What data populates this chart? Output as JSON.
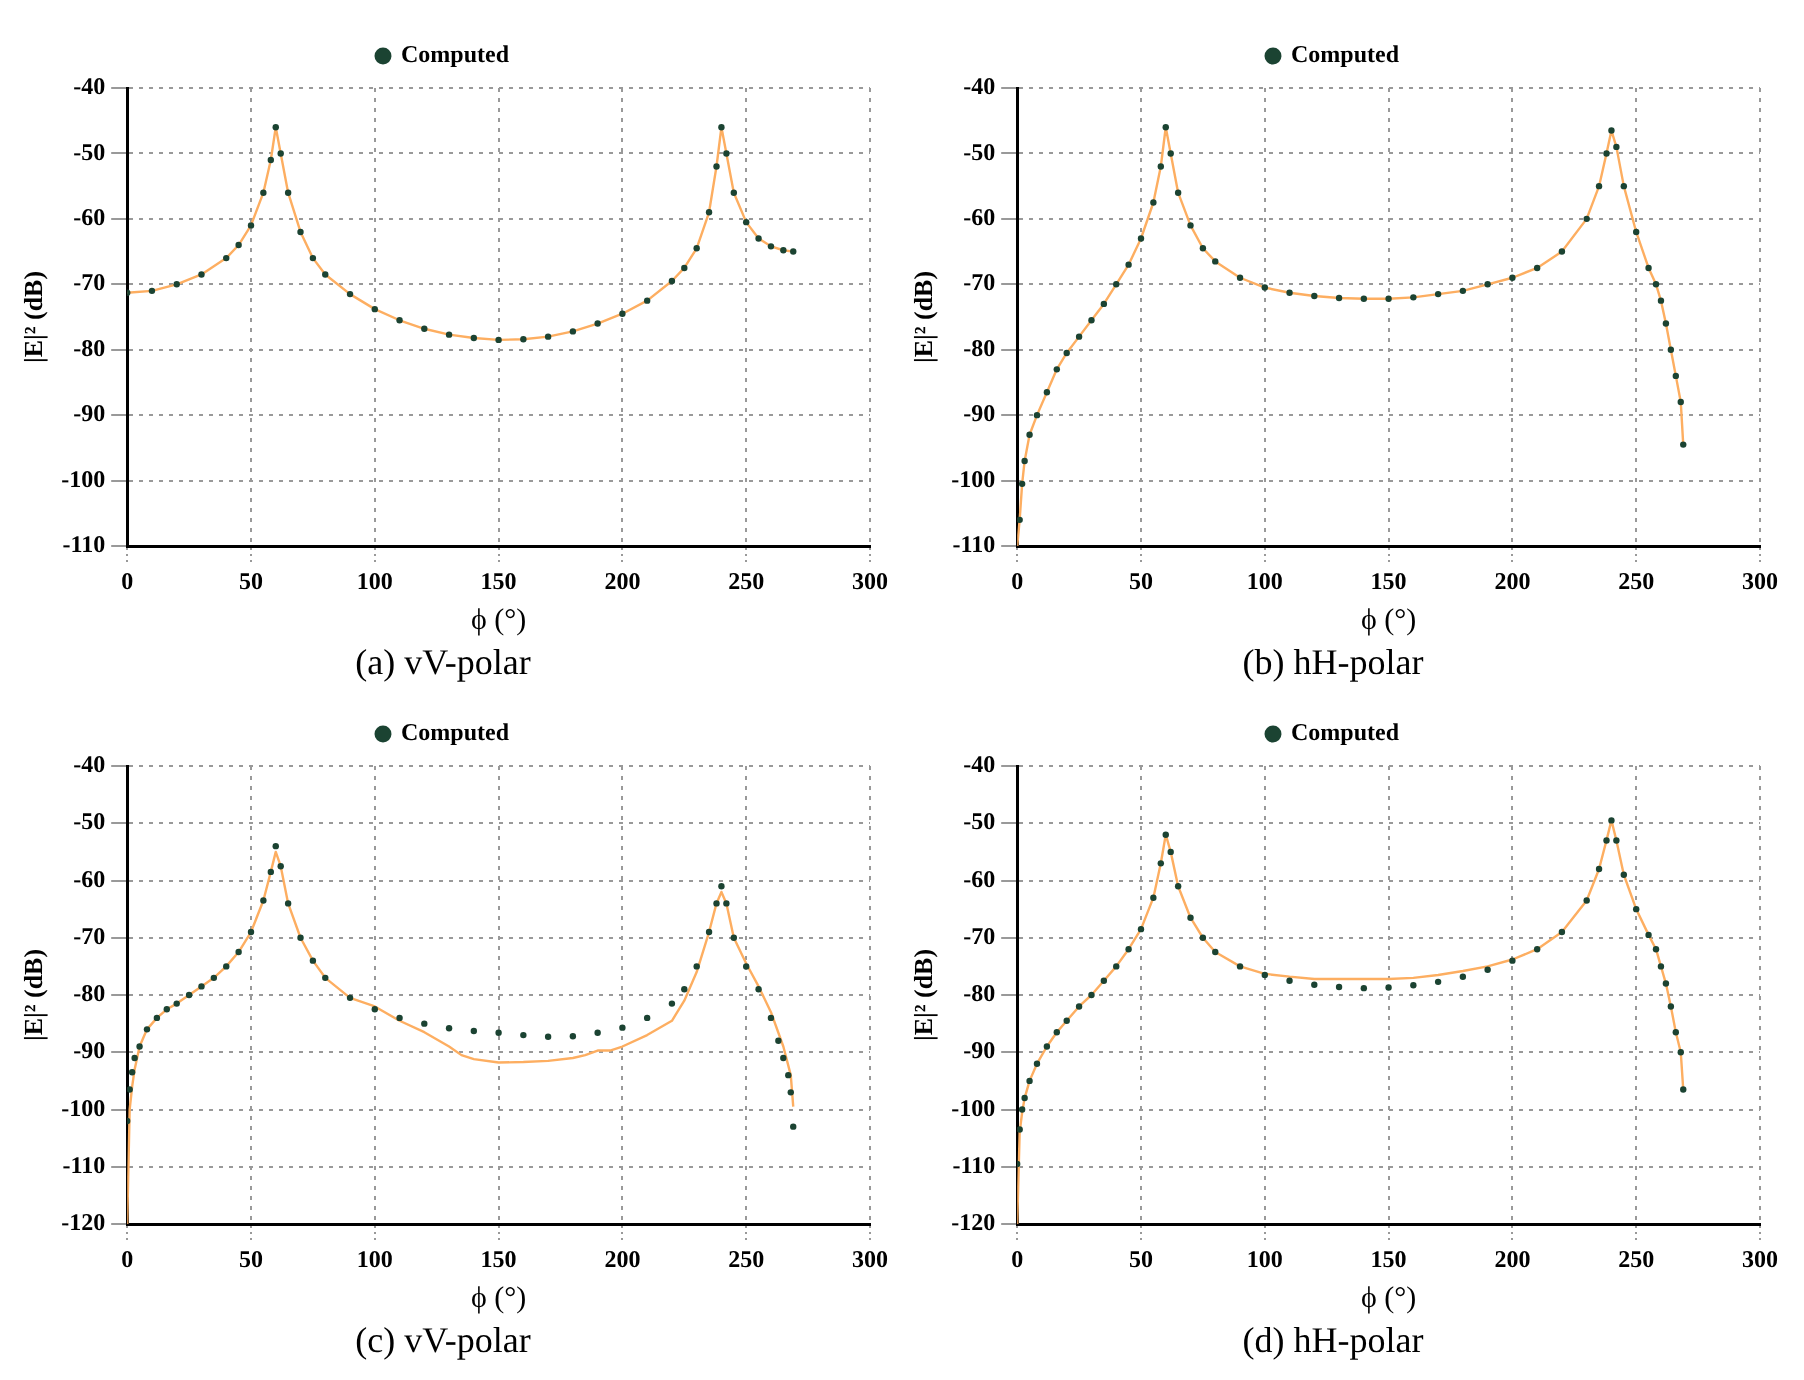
{
  "chart_data": [
    {
      "type": "line",
      "title": "(a) vV-polar",
      "xlabel": "ϕ (°)",
      "ylabel": "|E|² (dB)",
      "xlim": [
        0,
        300
      ],
      "xticks": [
        0,
        50,
        100,
        150,
        200,
        250,
        300
      ],
      "ylim": [
        -110,
        -40
      ],
      "yticks": [
        -110,
        -100,
        -90,
        -80,
        -70,
        -60,
        -50,
        -40
      ],
      "grid": true,
      "legend": "top",
      "series": [
        {
          "type": "line",
          "color": "#fdae61",
          "marker": "none",
          "line_style": "solid",
          "x": [
            0,
            10,
            20,
            30,
            40,
            45,
            50,
            55,
            58,
            60,
            62,
            65,
            70,
            75,
            80,
            90,
            100,
            110,
            120,
            130,
            140,
            150,
            160,
            170,
            180,
            190,
            200,
            210,
            220,
            225,
            230,
            235,
            238,
            240,
            242,
            245,
            250,
            255,
            260,
            265,
            269
          ],
          "values": [
            -71.3,
            -71,
            -70,
            -68.5,
            -66,
            -64,
            -61,
            -56,
            -51,
            -46,
            -50,
            -56,
            -62,
            -66,
            -68.5,
            -71.5,
            -73.8,
            -75.5,
            -76.8,
            -77.7,
            -78.2,
            -78.5,
            -78.4,
            -78,
            -77.2,
            -76,
            -74.5,
            -72.5,
            -69.5,
            -67.5,
            -64.5,
            -59,
            -52,
            -46,
            -50,
            -56,
            -60.5,
            -63,
            -64.2,
            -64.8,
            -65
          ]
        },
        {
          "type": "scatter",
          "name": "Computed",
          "color": "#1b4332",
          "marker": "circle",
          "x": [
            0,
            10,
            20,
            30,
            40,
            45,
            50,
            55,
            58,
            60,
            62,
            65,
            70,
            75,
            80,
            90,
            100,
            110,
            120,
            130,
            140,
            150,
            160,
            170,
            180,
            190,
            200,
            210,
            220,
            225,
            230,
            235,
            238,
            240,
            242,
            245,
            250,
            255,
            260,
            265,
            269
          ],
          "values": [
            -71.3,
            -71,
            -70,
            -68.5,
            -66,
            -64,
            -61,
            -56,
            -51,
            -46,
            -50,
            -56,
            -62,
            -66,
            -68.5,
            -71.5,
            -73.8,
            -75.5,
            -76.8,
            -77.7,
            -78.2,
            -78.5,
            -78.4,
            -78,
            -77.2,
            -76,
            -74.5,
            -72.5,
            -69.5,
            -67.5,
            -64.5,
            -59,
            -52,
            -46,
            -50,
            -56,
            -60.5,
            -63,
            -64.2,
            -64.8,
            -65
          ]
        }
      ]
    },
    {
      "type": "line",
      "title": "(b) hH-polar",
      "xlabel": "ϕ (°)",
      "ylabel": "|E|² (dB)",
      "xlim": [
        0,
        300
      ],
      "xticks": [
        0,
        50,
        100,
        150,
        200,
        250,
        300
      ],
      "ylim": [
        -110,
        -40
      ],
      "yticks": [
        -110,
        -100,
        -90,
        -80,
        -70,
        -60,
        -50,
        -40
      ],
      "grid": true,
      "legend": "top",
      "series": [
        {
          "type": "line",
          "color": "#fdae61",
          "marker": "none",
          "line_style": "solid",
          "x": [
            0,
            1,
            2,
            3,
            5,
            8,
            12,
            16,
            20,
            25,
            30,
            35,
            40,
            45,
            50,
            55,
            58,
            60,
            62,
            65,
            70,
            75,
            80,
            90,
            100,
            110,
            120,
            130,
            140,
            150,
            160,
            170,
            180,
            190,
            200,
            210,
            220,
            230,
            235,
            238,
            240,
            242,
            245,
            250,
            255,
            258,
            260,
            262,
            264,
            266,
            268,
            269
          ],
          "values": [
            -110,
            -106,
            -100.5,
            -97,
            -93,
            -90,
            -86.5,
            -83,
            -80.5,
            -78,
            -75.5,
            -73,
            -70,
            -67,
            -63,
            -57.5,
            -52,
            -46,
            -50,
            -56,
            -61,
            -64.5,
            -66.5,
            -69,
            -70.5,
            -71.3,
            -71.8,
            -72.1,
            -72.2,
            -72.2,
            -72,
            -71.5,
            -71,
            -70,
            -69,
            -67.5,
            -65,
            -60,
            -55,
            -50,
            -46.5,
            -49,
            -55,
            -62,
            -67.5,
            -70,
            -72.5,
            -76,
            -80,
            -84,
            -88,
            -94.5
          ]
        },
        {
          "type": "scatter",
          "name": "Computed",
          "color": "#1b4332",
          "marker": "circle",
          "x": [
            1,
            2,
            3,
            5,
            8,
            12,
            16,
            20,
            25,
            30,
            35,
            40,
            45,
            50,
            55,
            58,
            60,
            62,
            65,
            70,
            75,
            80,
            90,
            100,
            110,
            120,
            130,
            140,
            150,
            160,
            170,
            180,
            190,
            200,
            210,
            220,
            230,
            235,
            238,
            240,
            242,
            245,
            250,
            255,
            258,
            260,
            262,
            264,
            266,
            268,
            269
          ],
          "values": [
            -106,
            -100.5,
            -97,
            -93,
            -90,
            -86.5,
            -83,
            -80.5,
            -78,
            -75.5,
            -73,
            -70,
            -67,
            -63,
            -57.5,
            -52,
            -46,
            -50,
            -56,
            -61,
            -64.5,
            -66.5,
            -69,
            -70.5,
            -71.3,
            -71.8,
            -72.1,
            -72.2,
            -72.2,
            -72,
            -71.5,
            -71,
            -70,
            -69,
            -67.5,
            -65,
            -60,
            -55,
            -50,
            -46.5,
            -49,
            -55,
            -62,
            -67.5,
            -70,
            -72.5,
            -76,
            -80,
            -84,
            -88,
            -94.5
          ]
        }
      ]
    },
    {
      "type": "line",
      "title": "(c) vV-polar",
      "xlabel": "ϕ (°)",
      "ylabel": "|E|² (dB)",
      "xlim": [
        0,
        300
      ],
      "xticks": [
        0,
        50,
        100,
        150,
        200,
        250,
        300
      ],
      "ylim": [
        -120,
        -40
      ],
      "yticks": [
        -120,
        -110,
        -100,
        -90,
        -80,
        -70,
        -60,
        -50,
        -40
      ],
      "grid": true,
      "legend": "top",
      "series": [
        {
          "type": "line",
          "color": "#fdae61",
          "marker": "none",
          "line_style": "solid",
          "x": [
            0,
            1,
            2,
            3,
            5,
            8,
            12,
            16,
            20,
            25,
            30,
            35,
            40,
            45,
            50,
            55,
            58,
            60,
            62,
            65,
            70,
            75,
            80,
            90,
            100,
            110,
            120,
            130,
            135,
            140,
            150,
            160,
            170,
            180,
            185,
            190,
            195,
            200,
            210,
            220,
            225,
            230,
            235,
            238,
            240,
            242,
            245,
            250,
            255,
            260,
            265,
            268,
            269
          ],
          "values": [
            -120,
            -100,
            -96,
            -93,
            -89,
            -86,
            -84,
            -82.5,
            -81.5,
            -80,
            -78.5,
            -77,
            -75,
            -72.5,
            -69,
            -63.5,
            -58.5,
            -55,
            -57.5,
            -64,
            -70,
            -74,
            -77,
            -80.5,
            -82,
            -84.5,
            -86.5,
            -89,
            -90.5,
            -91.2,
            -91.8,
            -91.7,
            -91.5,
            -91,
            -90.5,
            -89.7,
            -89.7,
            -89,
            -87,
            -84.5,
            -81,
            -76,
            -69,
            -64,
            -62,
            -64,
            -70,
            -74.5,
            -78.5,
            -83,
            -89,
            -94,
            -99.5
          ]
        },
        {
          "type": "scatter",
          "name": "Computed",
          "color": "#1b4332",
          "marker": "circle",
          "x": [
            0,
            1,
            2,
            3,
            5,
            8,
            12,
            16,
            20,
            25,
            30,
            35,
            40,
            45,
            50,
            55,
            58,
            60,
            62,
            65,
            70,
            75,
            80,
            90,
            100,
            110,
            120,
            130,
            140,
            150,
            160,
            170,
            180,
            190,
            200,
            210,
            220,
            225,
            230,
            235,
            238,
            240,
            242,
            245,
            250,
            255,
            260,
            263,
            265,
            267,
            268,
            269
          ],
          "values": [
            -102,
            -96.5,
            -93.5,
            -91,
            -89,
            -86,
            -84,
            -82.5,
            -81.5,
            -80,
            -78.5,
            -77,
            -75,
            -72.5,
            -69,
            -63.5,
            -58.5,
            -54,
            -57.5,
            -64,
            -70,
            -74,
            -77,
            -80.5,
            -82.5,
            -84,
            -85,
            -85.8,
            -86.3,
            -86.6,
            -87,
            -87.3,
            -87.2,
            -86.6,
            -85.7,
            -84,
            -81.5,
            -79,
            -75,
            -69,
            -64,
            -61,
            -64,
            -70,
            -75,
            -79,
            -84,
            -88,
            -91,
            -94,
            -97,
            -103
          ]
        }
      ]
    },
    {
      "type": "line",
      "title": "(d) hH-polar",
      "xlabel": "ϕ (°)",
      "ylabel": "|E|² (dB)",
      "xlim": [
        0,
        300
      ],
      "xticks": [
        0,
        50,
        100,
        150,
        200,
        250,
        300
      ],
      "ylim": [
        -120,
        -40
      ],
      "yticks": [
        -120,
        -110,
        -100,
        -90,
        -80,
        -70,
        -60,
        -50,
        -40
      ],
      "grid": true,
      "legend": "top",
      "series": [
        {
          "type": "line",
          "color": "#fdae61",
          "marker": "none",
          "line_style": "solid",
          "x": [
            0,
            1,
            2,
            3,
            5,
            8,
            12,
            16,
            20,
            25,
            30,
            35,
            40,
            45,
            50,
            55,
            58,
            60,
            62,
            65,
            70,
            75,
            80,
            90,
            100,
            110,
            120,
            130,
            140,
            150,
            160,
            170,
            180,
            190,
            200,
            210,
            220,
            230,
            235,
            238,
            240,
            242,
            245,
            250,
            255,
            258,
            260,
            262,
            264,
            266,
            268,
            269
          ],
          "values": [
            -120,
            -104,
            -100.5,
            -98,
            -95,
            -92,
            -89,
            -86.5,
            -84.5,
            -82,
            -80,
            -77.5,
            -75,
            -72,
            -68.5,
            -63,
            -57,
            -52,
            -55,
            -61,
            -66.5,
            -70,
            -72.5,
            -75,
            -76.3,
            -76.8,
            -77.2,
            -77.2,
            -77.2,
            -77.2,
            -77,
            -76.5,
            -75.8,
            -75,
            -73.8,
            -72,
            -69,
            -63.5,
            -58,
            -53,
            -49.5,
            -53,
            -59,
            -65,
            -69.5,
            -72,
            -75,
            -78,
            -82,
            -86.5,
            -90,
            -96.5
          ]
        },
        {
          "type": "scatter",
          "name": "Computed",
          "color": "#1b4332",
          "marker": "circle",
          "x": [
            0,
            1,
            2,
            3,
            5,
            8,
            12,
            16,
            20,
            25,
            30,
            35,
            40,
            45,
            50,
            55,
            58,
            60,
            62,
            65,
            70,
            75,
            80,
            90,
            100,
            110,
            120,
            130,
            140,
            150,
            160,
            170,
            180,
            190,
            200,
            210,
            220,
            230,
            235,
            238,
            240,
            242,
            245,
            250,
            255,
            258,
            260,
            262,
            264,
            266,
            268,
            269
          ],
          "values": [
            -109.5,
            -103.5,
            -100,
            -98,
            -95,
            -92,
            -89,
            -86.5,
            -84.5,
            -82,
            -80,
            -77.5,
            -75,
            -72,
            -68.5,
            -63,
            -57,
            -52,
            -55,
            -61,
            -66.5,
            -70,
            -72.5,
            -75,
            -76.5,
            -77.5,
            -78.2,
            -78.6,
            -78.8,
            -78.7,
            -78.3,
            -77.7,
            -76.8,
            -75.6,
            -74,
            -72,
            -69,
            -63.5,
            -58,
            -53,
            -49.5,
            -53,
            -59,
            -65,
            -69.5,
            -72,
            -75,
            -78,
            -82,
            -86.5,
            -90,
            -96.5
          ]
        }
      ]
    }
  ]
}
